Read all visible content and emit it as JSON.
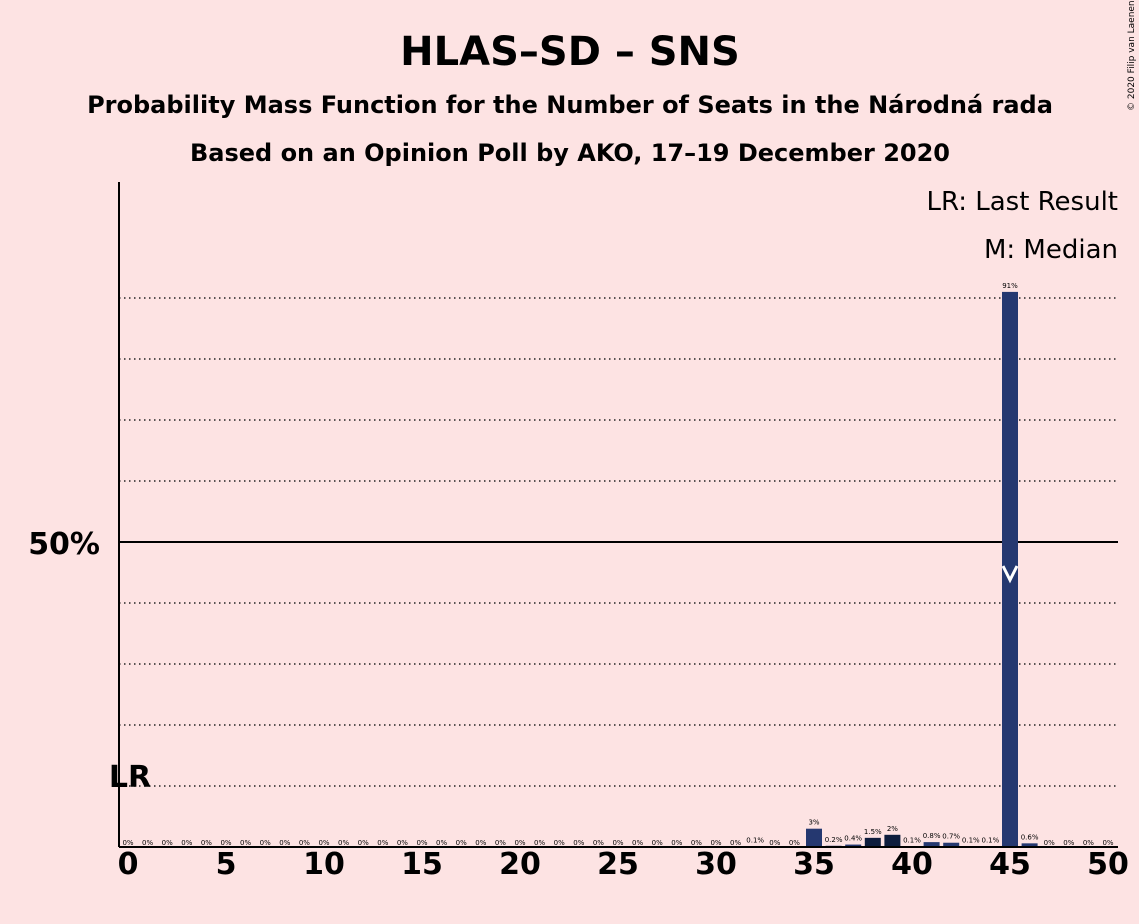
{
  "copyright": "© 2020 Filip van Laenen",
  "chart_data": {
    "type": "bar",
    "title": "HLAS–SD – SNS",
    "subtitle": "Probability Mass Function for the Number of Seats in the Národná rada",
    "subtitle2": "Based on an Opinion Poll by AKO, 17–19 December 2020",
    "xlabel": "",
    "ylabel": "",
    "x": [
      0,
      1,
      2,
      3,
      4,
      5,
      6,
      7,
      8,
      9,
      10,
      11,
      12,
      13,
      14,
      15,
      16,
      17,
      18,
      19,
      20,
      21,
      22,
      23,
      24,
      25,
      26,
      27,
      28,
      29,
      30,
      31,
      32,
      33,
      34,
      35,
      36,
      37,
      38,
      39,
      40,
      41,
      42,
      43,
      44,
      45,
      46,
      47,
      48,
      49,
      50
    ],
    "values": [
      0,
      0,
      0,
      0,
      0,
      0,
      0,
      0,
      0,
      0,
      0,
      0,
      0,
      0,
      0,
      0,
      0,
      0,
      0,
      0,
      0,
      0,
      0,
      0,
      0,
      0,
      0,
      0,
      0,
      0,
      0,
      0,
      0.1,
      0,
      0,
      3,
      0.2,
      0.4,
      1.5,
      2,
      0.1,
      0.8,
      0.7,
      0.1,
      0.1,
      91,
      0.6,
      0,
      0,
      0,
      0
    ],
    "data_labels": [
      "0%",
      "0%",
      "0%",
      "0%",
      "0%",
      "0%",
      "0%",
      "0%",
      "0%",
      "0%",
      "0%",
      "0%",
      "0%",
      "0%",
      "0%",
      "0%",
      "0%",
      "0%",
      "0%",
      "0%",
      "0%",
      "0%",
      "0%",
      "0%",
      "0%",
      "0%",
      "0%",
      "0%",
      "0%",
      "0%",
      "0%",
      "0%",
      "0.1%",
      "0%",
      "0%",
      "3%",
      "0.2%",
      "0.4%",
      "1.5%",
      "2%",
      "0.1%",
      "0.8%",
      "0.7%",
      "0.1%",
      "0.1%",
      "91%",
      "0.6%",
      "0%",
      "0%",
      "0%",
      "0%"
    ],
    "xlim": [
      0,
      50
    ],
    "ylim": [
      0,
      100
    ],
    "xticks": [
      0,
      5,
      10,
      15,
      20,
      25,
      30,
      35,
      40,
      45,
      50
    ],
    "ytick_label": "50%",
    "ytick_value": 50,
    "gridlines": [
      10,
      20,
      30,
      40,
      60,
      70,
      80,
      90
    ],
    "grid": "dotted",
    "last_result_seat": 0,
    "last_result_label": "LR",
    "median_seat": 45,
    "legend": [
      "LR: Last Result",
      "M: Median"
    ],
    "legend_position": "top-right",
    "colors": {
      "background": "#fde3e3",
      "bar": "#253870",
      "bar_dark": "#0d1c3c",
      "median_marker": "#ffffff",
      "axis": "#000000"
    }
  }
}
